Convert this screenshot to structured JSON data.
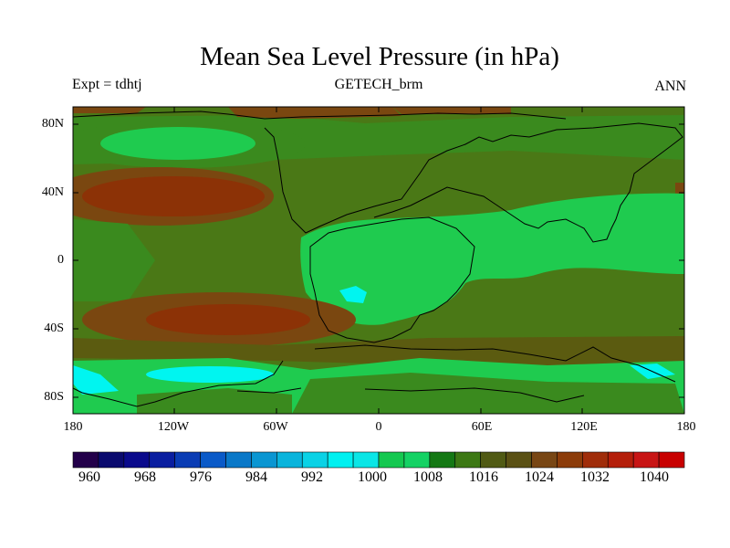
{
  "title": "Mean Sea Level Pressure (in hPa)",
  "left_label": "Expt = tdhtj",
  "center_label": "GETECH_brm",
  "right_label": "ANN",
  "lat_ticks": [
    "80N",
    "40N",
    "0",
    "40S",
    "80S"
  ],
  "lon_ticks": [
    "180",
    "120W",
    "60W",
    "0",
    "60E",
    "120E",
    "180"
  ],
  "colorbar": {
    "labels": [
      "960",
      "968",
      "976",
      "984",
      "992",
      "1000",
      "1008",
      "1016",
      "1024",
      "1032",
      "1040"
    ],
    "colors": [
      "#23004a",
      "#0a0a6e",
      "#0a0a8c",
      "#0a1ea0",
      "#0a3cb4",
      "#0a5ac8",
      "#0a78c8",
      "#0a96d2",
      "#0ab4dc",
      "#0ad2e6",
      "#00f0f0",
      "#0ae6e6",
      "#14c850",
      "#14d264",
      "#147814",
      "#3c7814",
      "#505a14",
      "#5a5014",
      "#784614",
      "#8c3c0a",
      "#a02d0a",
      "#b41e0a",
      "#c81414",
      "#c80000"
    ]
  },
  "map_colors": {
    "c1000": "#00f5f0",
    "c1004": "#0ad06a",
    "c1012": "#1fcb4f",
    "c1014": "#3a8a1e",
    "c1016": "#4a7816",
    "c1020": "#5b5b10",
    "c1024": "#7a4710",
    "c1028": "#8c3206",
    "land_outline": "#000000"
  }
}
